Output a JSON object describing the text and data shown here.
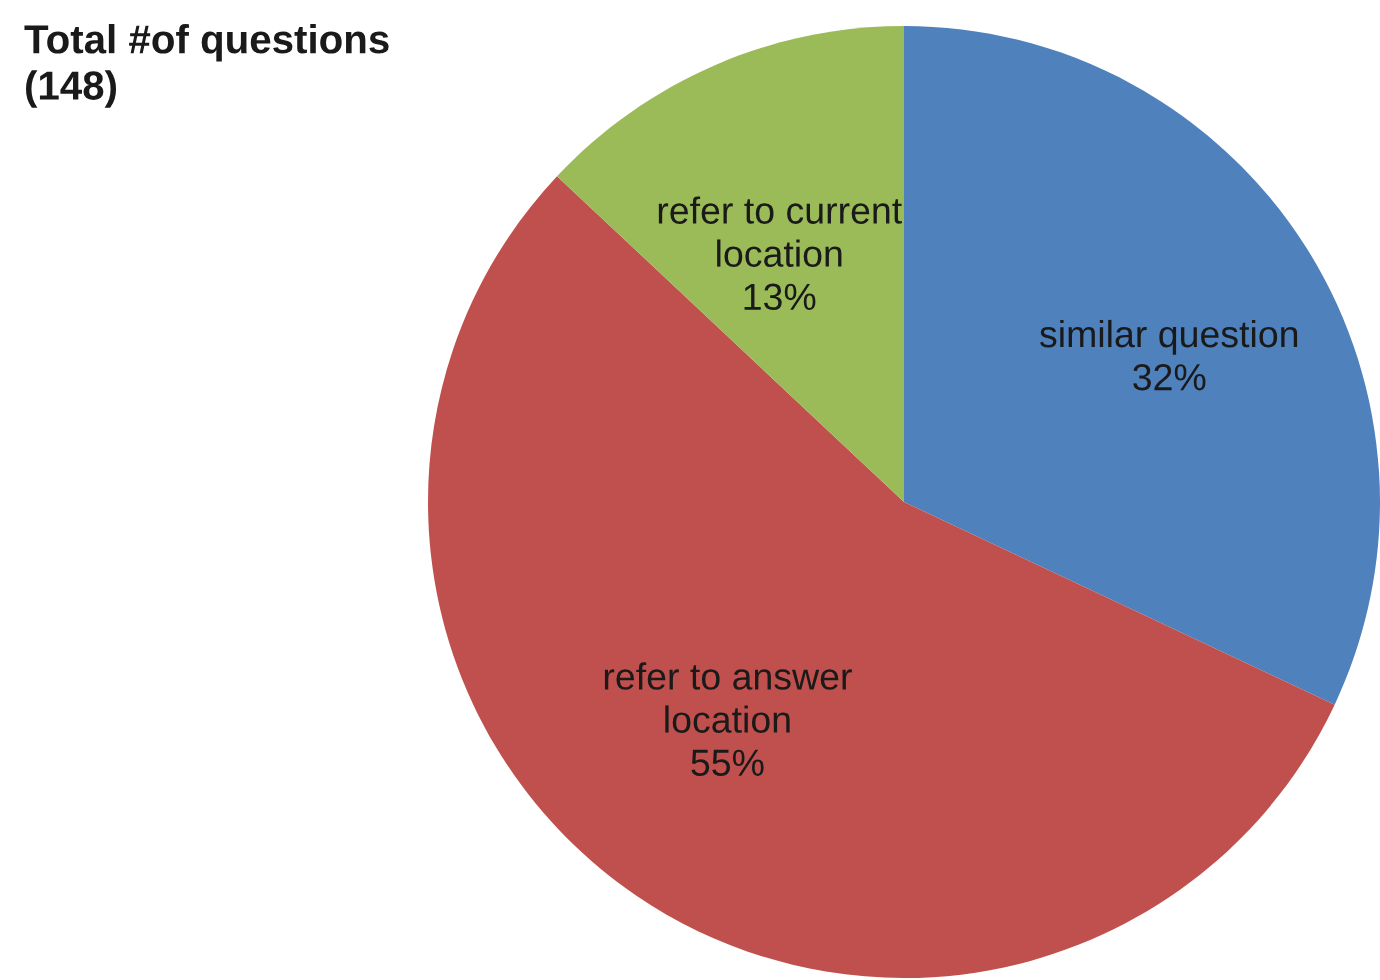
{
  "chart_data": {
    "type": "pie",
    "title": "Total #of questions\n(148)",
    "categories": [
      "similar question",
      "refer to answer\nlocation",
      "refer to current\nlocation"
    ],
    "values": [
      32,
      55,
      13
    ],
    "colors": [
      "#4f81bd",
      "#c0504d",
      "#9bbb59"
    ],
    "value_labels": [
      "32%",
      "55%",
      "13%"
    ]
  }
}
